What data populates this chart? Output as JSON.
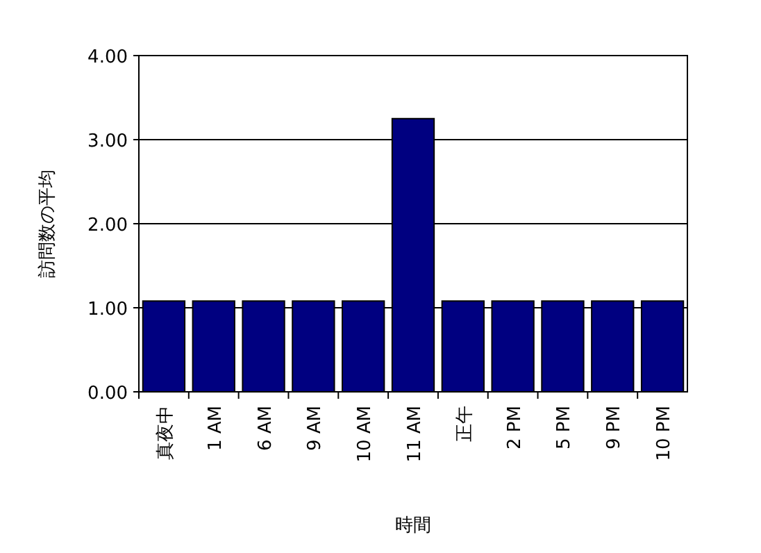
{
  "chart_data": {
    "type": "bar",
    "xlabel": "時間",
    "ylabel": "訪問数の平均",
    "categories": [
      "真夜中",
      "1 AM",
      "6 AM",
      "9 AM",
      "10 AM",
      "11 AM",
      "正午",
      "2 PM",
      "5 PM",
      "9 PM",
      "10 PM"
    ],
    "values": [
      1.08,
      1.08,
      1.08,
      1.08,
      1.08,
      3.25,
      1.08,
      1.08,
      1.08,
      1.08,
      1.08
    ],
    "color": "#000080",
    "ylim": [
      0,
      4
    ],
    "yticks": [
      {
        "value": 0,
        "label": "0.00"
      },
      {
        "value": 1,
        "label": "1.00"
      },
      {
        "value": 2,
        "label": "2.00"
      },
      {
        "value": 3,
        "label": "3.00"
      },
      {
        "value": 4,
        "label": "4.00"
      }
    ],
    "grid": "y"
  }
}
